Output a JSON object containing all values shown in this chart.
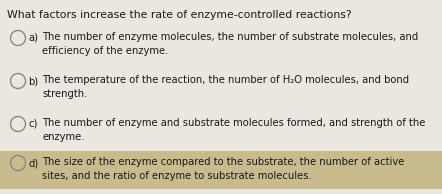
{
  "title": "What factors increase the rate of enzyme-controlled reactions?",
  "options": [
    {
      "label": "a)",
      "lines": [
        "The number of enzyme molecules, the number of substrate molecules, and",
        "efficiency of the enzyme."
      ],
      "highlighted": false
    },
    {
      "label": "b)",
      "lines": [
        "The temperature of the reaction, the number of H₂O molecules, and bond",
        "strength."
      ],
      "highlighted": false
    },
    {
      "label": "c)",
      "lines": [
        "The number of enzyme and substrate molecules formed, and strength of the",
        "enzyme."
      ],
      "highlighted": false
    },
    {
      "label": "d)",
      "lines": [
        "The size of the enzyme compared to the substrate, the number of active",
        "sites, and the ratio of enzyme to substrate molecules."
      ],
      "highlighted": true
    }
  ],
  "bg_color": "#eae6e0",
  "text_color": "#1a1a1a",
  "circle_edgecolor": "#888888",
  "highlight_color": "#c8bb8e",
  "title_fontsize": 7.8,
  "option_fontsize": 7.2,
  "label_fontsize": 7.2,
  "figwidth": 4.42,
  "figheight": 1.94,
  "dpi": 100
}
